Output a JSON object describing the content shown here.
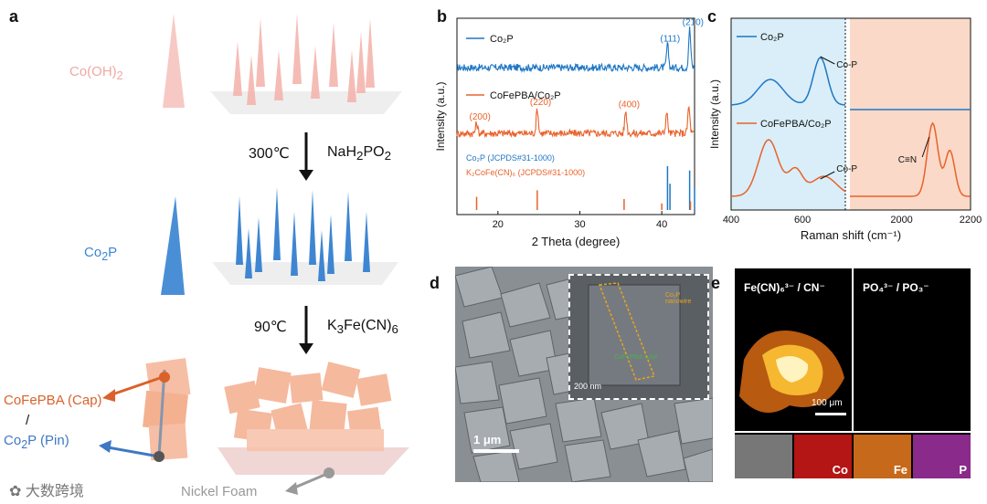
{
  "figure": {
    "panel_labels": [
      "a",
      "b",
      "c",
      "d",
      "e"
    ],
    "panel_a": {
      "coh2_label": "Co(OH)",
      "coh2_sub": "2",
      "step1_temp": "300℃",
      "step1_reagent_pre": "NaH",
      "step1_reagent_sub": "2",
      "step1_reagent_post": "PO",
      "step1_reagent_sub2": "2",
      "co2p_label": "Co",
      "co2p_sub": "2",
      "co2p_post": "P",
      "step2_temp": "90℃",
      "step2_reagent_pre": "K",
      "step2_reagent_sub": "3",
      "step2_reagent_post": "Fe(CN)",
      "step2_reagent_sub2": "6",
      "cap_label": "CoFePBA (Cap)",
      "slash": "/",
      "pin_pre": "Co",
      "pin_sub": "2",
      "pin_post": "P (Pin)",
      "foam_label": "Nickel Foam"
    },
    "panel_d": {
      "inset_scale": "200 nm",
      "inset_nanowire": "Co₂P nanowire",
      "inset_cube": "CoFePBA cube",
      "scale": "1 μm"
    },
    "panel_e": {
      "left_title": "Fe(CN)₆³⁻ / CN⁻",
      "right_title": "PO₄³⁻ / PO₃⁻",
      "scale": "100 μm",
      "tiles": [
        "Co",
        "Fe",
        "P"
      ]
    },
    "watermark": "大数跨境"
  },
  "chart_data": [
    {
      "type": "line",
      "panel": "b",
      "title": "",
      "xlabel": "2 Theta (degree)",
      "ylabel": "Intensity (a.u.)",
      "xlim": [
        15,
        44
      ],
      "xticks": [
        20,
        30,
        40
      ],
      "series": [
        {
          "name": "Co₂P",
          "color": "#1f77c4",
          "peaks": [
            [
              40.7,
              0.55
            ],
            [
              43.4,
              0.95
            ]
          ],
          "peak_labels": [
            "(111)",
            "(210)"
          ]
        },
        {
          "name": "CoFePBA/Co₂P",
          "color": "#e8622b",
          "peaks": [
            [
              17.4,
              0.25
            ],
            [
              24.8,
              0.6
            ],
            [
              35.6,
              0.55
            ],
            [
              40.6,
              0.5
            ],
            [
              43.3,
              0.65
            ]
          ],
          "peak_labels": [
            "(200)",
            "(220)",
            "(400)"
          ]
        }
      ],
      "references": [
        {
          "name": "Co₂P (JCPDS#31-1000)",
          "color": "#1f77c4",
          "lines": [
            [
              40.7,
              1.0
            ],
            [
              41.0,
              0.6
            ],
            [
              43.4,
              0.9
            ],
            [
              44.0,
              0.5
            ]
          ]
        },
        {
          "name": "K₂CoFe(CN)₆ (JCPDS#31-1000)",
          "color": "#e8622b",
          "lines": [
            [
              17.4,
              0.3
            ],
            [
              24.8,
              0.45
            ],
            [
              35.4,
              0.25
            ],
            [
              40.0,
              0.15
            ],
            [
              43.5,
              0.2
            ]
          ]
        }
      ]
    },
    {
      "type": "line",
      "panel": "c",
      "title": "",
      "xlabel": "Raman shift (cm⁻¹)",
      "ylabel": "Intensity (a.u.)",
      "xticks": [
        400,
        600,
        2000,
        2200
      ],
      "series": [
        {
          "name": "Co₂P",
          "color": "#1f77c4",
          "annotation": "Co-P"
        },
        {
          "name": "CoFePBA/Co₂P",
          "color": "#e8622b",
          "annotations": [
            "Co-P",
            "C≡N"
          ]
        }
      ]
    }
  ]
}
